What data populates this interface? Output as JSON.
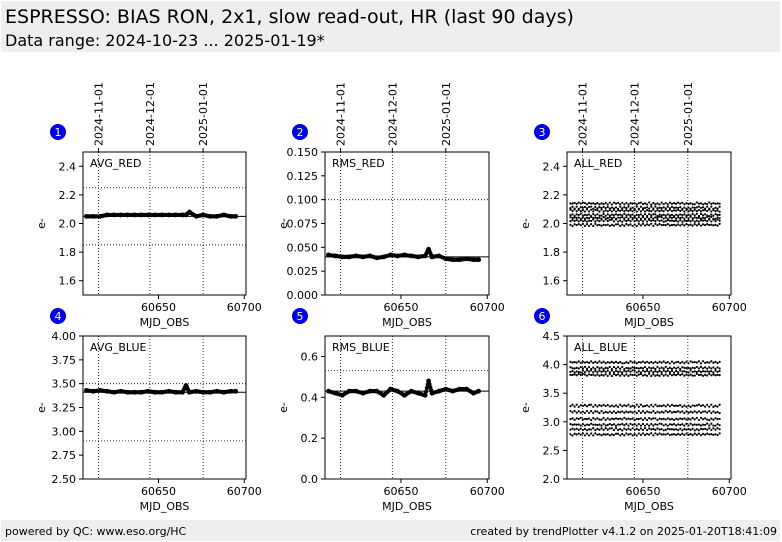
{
  "header": {
    "title": "ESPRESSO: BIAS RON, 2x1, slow read-out, HR (last 90 days)",
    "subtitle": "Data range: 2024-10-23 ... 2025-01-19*"
  },
  "footer": {
    "left": "powered by QC: www.eso.org/HC",
    "right": "created by trendPlotter v4.1.2 on 2025-01-20T18:41:09"
  },
  "colors": {
    "marker": "#000000",
    "badge": "#0000ee",
    "header_bg": "#eeeeee"
  },
  "chart_data": [
    {
      "id": 1,
      "type": "scatter",
      "label": "AVG_RED",
      "xlabel": "MJD_OBS",
      "ylabel": "e-",
      "xlim": [
        60606,
        60701
      ],
      "ylim": [
        1.5,
        2.5
      ],
      "yticks": [
        "1.6",
        "1.8",
        "2.0",
        "2.2",
        "2.4"
      ],
      "xticks": [
        "60650",
        "60700"
      ],
      "date_ticks": [
        "2024-11-01",
        "2024-12-01",
        "2025-01-01"
      ],
      "hlines_solid": [
        2.05
      ],
      "hlines_dotted": [
        1.85,
        2.25
      ],
      "series": [
        {
          "x": [
            60608,
            60612,
            60616,
            60620,
            60624,
            60628,
            60632,
            60636,
            60640,
            60644,
            60648,
            60652,
            60656,
            60660,
            60664,
            60666,
            60668,
            60672,
            60676,
            60680,
            60684,
            60688,
            60692,
            60695
          ],
          "y": [
            2.05,
            2.05,
            2.05,
            2.06,
            2.06,
            2.06,
            2.06,
            2.06,
            2.06,
            2.06,
            2.06,
            2.06,
            2.06,
            2.06,
            2.06,
            2.06,
            2.08,
            2.05,
            2.06,
            2.05,
            2.05,
            2.06,
            2.05,
            2.05
          ]
        }
      ]
    },
    {
      "id": 2,
      "type": "scatter",
      "label": "RMS_RED",
      "xlabel": "MJD_OBS",
      "ylabel": "e-",
      "xlim": [
        60606,
        60701
      ],
      "ylim": [
        0.0,
        0.15
      ],
      "yticks": [
        "0.000",
        "0.025",
        "0.050",
        "0.075",
        "0.100",
        "0.125",
        "0.150"
      ],
      "xticks": [
        "60650",
        "60700"
      ],
      "date_ticks": [
        "2024-11-01",
        "2024-12-01",
        "2025-01-01"
      ],
      "hlines_solid": [
        0.04
      ],
      "hlines_dotted": [
        0.1
      ],
      "series": [
        {
          "x": [
            60608,
            60612,
            60616,
            60620,
            60624,
            60628,
            60632,
            60636,
            60640,
            60644,
            60648,
            60652,
            60656,
            60660,
            60664,
            60666,
            60668,
            60672,
            60676,
            60680,
            60684,
            60688,
            60692,
            60695
          ],
          "y": [
            0.042,
            0.041,
            0.04,
            0.04,
            0.041,
            0.04,
            0.041,
            0.039,
            0.04,
            0.042,
            0.041,
            0.042,
            0.041,
            0.04,
            0.041,
            0.048,
            0.04,
            0.041,
            0.038,
            0.037,
            0.037,
            0.038,
            0.037,
            0.037
          ]
        }
      ]
    },
    {
      "id": 3,
      "type": "scatter",
      "label": "ALL_RED",
      "xlabel": "MJD_OBS",
      "ylabel": "e-",
      "xlim": [
        60606,
        60701
      ],
      "ylim": [
        1.5,
        2.5
      ],
      "yticks": [
        "1.6",
        "1.8",
        "2.0",
        "2.2",
        "2.4"
      ],
      "xticks": [
        "60650",
        "60700"
      ],
      "date_ticks": [
        "2024-11-01",
        "2024-12-01",
        "2025-01-01"
      ],
      "band_levels": [
        1.99,
        2.02,
        2.04,
        2.06,
        2.09,
        2.11,
        2.14
      ],
      "band_x": [
        60608,
        60695
      ]
    },
    {
      "id": 4,
      "type": "scatter",
      "label": "AVG_BLUE",
      "xlabel": "MJD_OBS",
      "ylabel": "e-",
      "xlim": [
        60606,
        60701
      ],
      "ylim": [
        2.5,
        4.0
      ],
      "yticks": [
        "2.50",
        "2.75",
        "3.00",
        "3.25",
        "3.50",
        "3.75",
        "4.00"
      ],
      "xticks": [
        "60650",
        "60700"
      ],
      "date_ticks": [
        "2024-11-01",
        "2024-12-01",
        "2025-01-01"
      ],
      "hlines_solid": [
        3.41
      ],
      "hlines_dotted": [
        2.9,
        3.5
      ],
      "series": [
        {
          "x": [
            60608,
            60612,
            60616,
            60620,
            60624,
            60628,
            60632,
            60636,
            60640,
            60644,
            60648,
            60652,
            60656,
            60660,
            60664,
            60666,
            60668,
            60672,
            60676,
            60680,
            60684,
            60688,
            60692,
            60695
          ],
          "y": [
            3.43,
            3.42,
            3.43,
            3.42,
            3.41,
            3.42,
            3.41,
            3.41,
            3.41,
            3.42,
            3.41,
            3.41,
            3.42,
            3.41,
            3.41,
            3.48,
            3.41,
            3.42,
            3.41,
            3.41,
            3.42,
            3.41,
            3.42,
            3.42
          ]
        }
      ]
    },
    {
      "id": 5,
      "type": "scatter",
      "label": "RMS_BLUE",
      "xlabel": "MJD_OBS",
      "ylabel": "e-",
      "xlim": [
        60606,
        60701
      ],
      "ylim": [
        0.0,
        0.7
      ],
      "yticks": [
        "0.0",
        "0.2",
        "0.4",
        "0.6"
      ],
      "xticks": [
        "60650",
        "60700"
      ],
      "date_ticks": [
        "2024-11-01",
        "2024-12-01",
        "2025-01-01"
      ],
      "hlines_solid": [
        0.43
      ],
      "hlines_dotted": [
        0.53
      ],
      "series": [
        {
          "x": [
            60608,
            60612,
            60616,
            60620,
            60624,
            60628,
            60632,
            60636,
            60640,
            60644,
            60648,
            60652,
            60656,
            60660,
            60664,
            60666,
            60668,
            60672,
            60676,
            60680,
            60684,
            60688,
            60692,
            60695
          ],
          "y": [
            0.43,
            0.42,
            0.41,
            0.43,
            0.43,
            0.42,
            0.43,
            0.43,
            0.41,
            0.44,
            0.43,
            0.41,
            0.43,
            0.42,
            0.41,
            0.48,
            0.42,
            0.43,
            0.44,
            0.43,
            0.44,
            0.44,
            0.42,
            0.43
          ]
        }
      ]
    },
    {
      "id": 6,
      "type": "scatter",
      "label": "ALL_BLUE",
      "xlabel": "MJD_OBS",
      "ylabel": "e-",
      "xlim": [
        60606,
        60701
      ],
      "ylim": [
        2.0,
        4.5
      ],
      "yticks": [
        "2.0",
        "2.5",
        "3.0",
        "3.5",
        "4.0",
        "4.5"
      ],
      "xticks": [
        "60650",
        "60700"
      ],
      "date_ticks": [
        "2024-11-01",
        "2024-12-01",
        "2025-01-01"
      ],
      "band_levels": [
        2.78,
        2.87,
        2.95,
        3.05,
        3.17,
        3.28,
        3.82,
        3.88,
        3.94,
        4.04
      ],
      "band_x": [
        60608,
        60695
      ]
    }
  ]
}
